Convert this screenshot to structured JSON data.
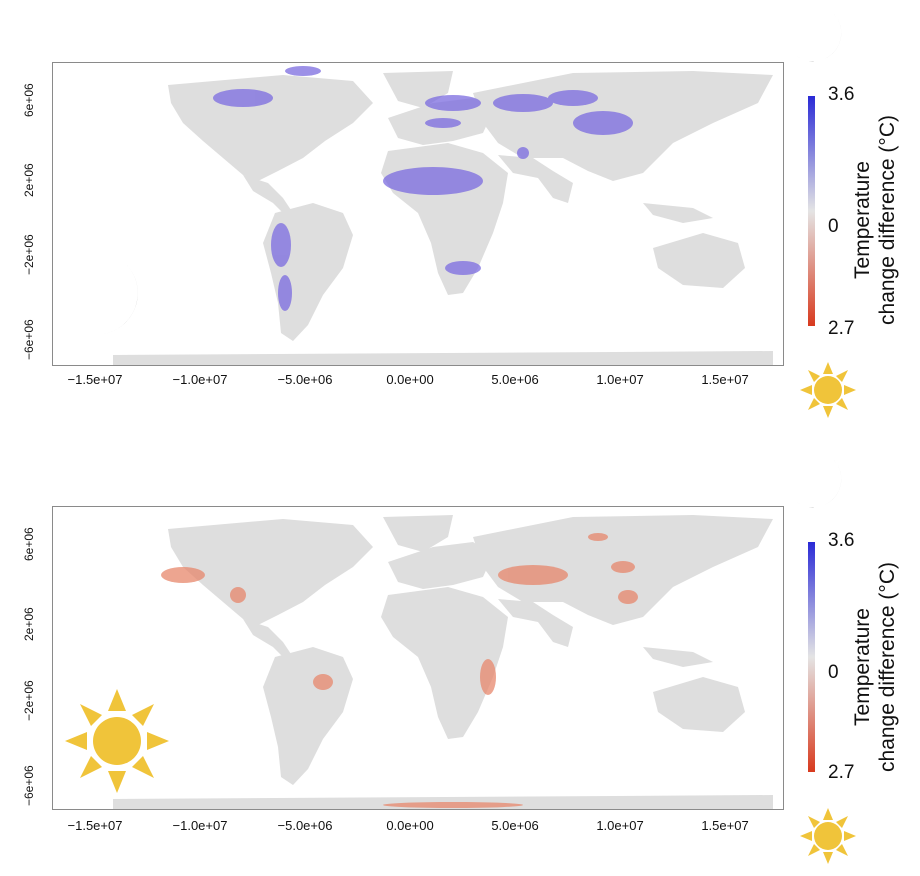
{
  "x_ticks": [
    "−1.5e+07",
    "−1.0e+07",
    "−5.0e+06",
    "0.0e+00",
    "5.0e+06",
    "1.0e+07",
    "1.5e+07"
  ],
  "y_ticks": [
    "6e+06",
    "2e+06",
    "−2e+06",
    "−6e+06"
  ],
  "colorbar": {
    "top_value": "3.6",
    "mid_value": "0",
    "bottom_value": "2.7",
    "label_line1": "Temperature",
    "label_line2": "change difference (°C)",
    "color_top": "#2a2ad6",
    "color_mid": "#e4e4e4",
    "color_bottom": "#d83a1e"
  },
  "panels": [
    {
      "legend_icon": "moon-icon",
      "highlight": "night warming (blue)",
      "highlight_color": "#7b6be0"
    },
    {
      "legend_icon": "sun-icon",
      "highlight": "day warming (red)",
      "highlight_color": "#e7876c"
    }
  ],
  "land_color": "#dedede"
}
